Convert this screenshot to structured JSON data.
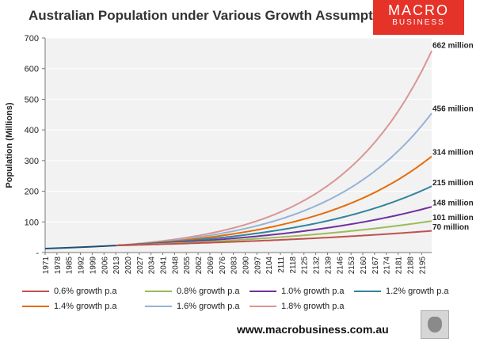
{
  "logo": {
    "line1": "MACRO",
    "line2": "BUSINESS"
  },
  "footer": {
    "url": "www.macrobusiness.com.au"
  },
  "chart_data": {
    "type": "line",
    "title": "Australian Population under Various Growth Assumptions",
    "xlabel": "",
    "ylabel": "Population (Millions)",
    "ylim": [
      0,
      700
    ],
    "yticks": [
      "-",
      "100",
      "200",
      "300",
      "400",
      "500",
      "600",
      "700"
    ],
    "x_ticks": [
      "1971",
      "1978",
      "1985",
      "1992",
      "1999",
      "2006",
      "2013",
      "2020",
      "2027",
      "2034",
      "2041",
      "2048",
      "2055",
      "2062",
      "2069",
      "2076",
      "2083",
      "2090",
      "2097",
      "2104",
      "2111",
      "2118",
      "2125",
      "2132",
      "2139",
      "2146",
      "2153",
      "2160",
      "2167",
      "2174",
      "2181",
      "2188",
      "2195"
    ],
    "x_range": [
      1971,
      2201
    ],
    "legend_position": "bottom",
    "historical": {
      "x": [
        1971,
        1985,
        1999,
        2013
      ],
      "values": [
        13,
        15.8,
        19,
        23
      ]
    },
    "projection_start": 2013,
    "projection_start_value": 23,
    "series": [
      {
        "name": "0.6% growth p.a",
        "rate": 0.006,
        "end_value": 70,
        "color": "#c0504d",
        "end_label": "70 million"
      },
      {
        "name": "0.8% growth p.a",
        "rate": 0.008,
        "end_value": 101,
        "color": "#9bbb59",
        "end_label": "101 million"
      },
      {
        "name": "1.0% growth p.a",
        "rate": 0.01,
        "end_value": 148,
        "color": "#7030a0",
        "end_label": "148 million"
      },
      {
        "name": "1.2% growth p.a",
        "rate": 0.012,
        "end_value": 215,
        "color": "#31859c",
        "end_label": "215 million"
      },
      {
        "name": "1.4% growth p.a",
        "rate": 0.014,
        "end_value": 314,
        "color": "#e46c0a",
        "end_label": "314 million"
      },
      {
        "name": "1.6% growth p.a",
        "rate": 0.016,
        "end_value": 456,
        "color": "#95b3d7",
        "end_label": "456 million"
      },
      {
        "name": "1.8% growth p.a",
        "rate": 0.018,
        "end_value": 662,
        "color": "#d99694",
        "end_label": "662 million"
      }
    ],
    "historical_color": "#1f4e79"
  }
}
